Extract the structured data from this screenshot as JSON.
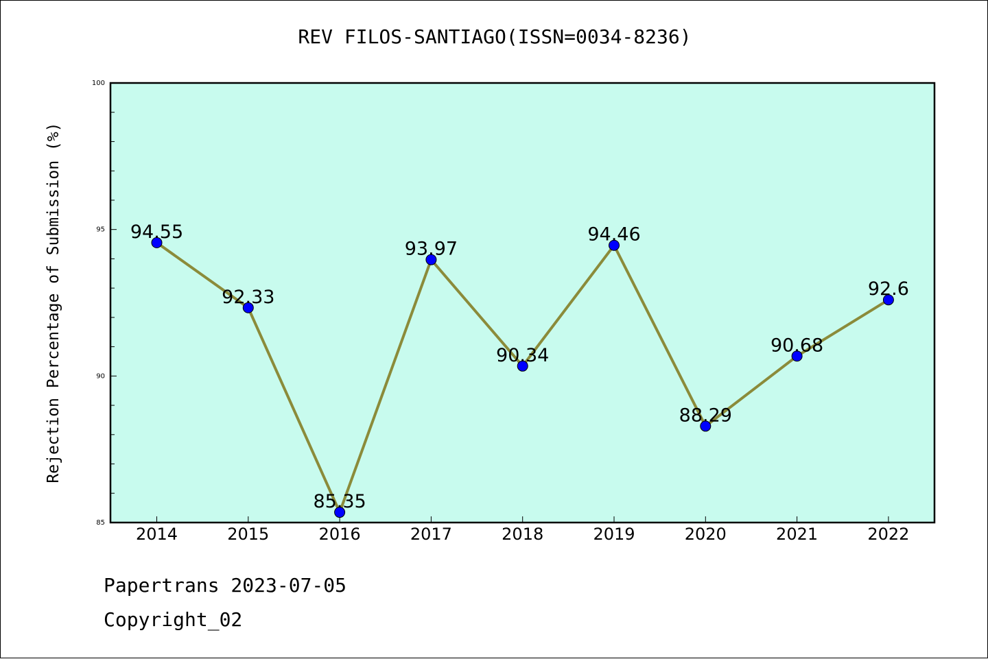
{
  "chart_data": {
    "type": "line",
    "title": "REV FILOS-SANTIAGO(ISSN=0034-8236)",
    "ylabel": "Rejection Percentage of Submission (%)",
    "xlabel": "",
    "categories": [
      "2014",
      "2015",
      "2016",
      "2017",
      "2018",
      "2019",
      "2020",
      "2021",
      "2022"
    ],
    "values": [
      94.55,
      92.33,
      85.35,
      93.97,
      90.34,
      94.46,
      88.29,
      90.68,
      92.6
    ],
    "data_labels": [
      "94.55",
      "92.33",
      "85.35",
      "93.97",
      "90.34",
      "94.46",
      "88.29",
      "90.68",
      "92.6"
    ],
    "ylim": [
      85,
      100
    ],
    "yticks": [
      "85",
      "90",
      "95",
      "100"
    ],
    "grid": false,
    "colors": {
      "plot_background": "#c8fbee",
      "line": "#8b8b3a",
      "marker": "#0000ff"
    }
  },
  "footer": {
    "line1": "Papertrans 2023-07-05",
    "line2": "Copyright_02"
  }
}
